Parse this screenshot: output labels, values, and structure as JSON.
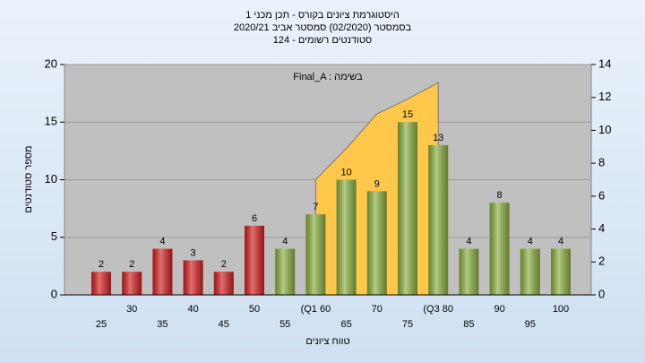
{
  "chart_data": {
    "type": "bar",
    "title": "היסטוגרמת ציונים בקורס - תכן מכני 1",
    "subtitle": "בסמסטר  (02/2020)  סמסטר אביב 2020/21",
    "subtitle2": "סטודנטים רשומים - 124",
    "legend": "Final_A : בשימה",
    "x_label": "טווח ציונים",
    "y_label": "מספר סטודנטים",
    "categories": [
      "25",
      "30",
      "35",
      "40",
      "45",
      "50",
      "55",
      "(Q1 60",
      "65",
      "70",
      "75",
      "(Q3 80",
      "85",
      "90",
      "95",
      "100"
    ],
    "values": [
      2,
      2,
      4,
      3,
      2,
      6,
      4,
      7,
      10,
      9,
      15,
      13,
      4,
      8,
      4,
      4
    ],
    "colors": [
      "#d42020",
      "#d42020",
      "#d42020",
      "#d42020",
      "#d42020",
      "#d42020",
      "#8cb040",
      "#8cb040",
      "#8cb040",
      "#8cb040",
      "#8cb040",
      "#8cb040",
      "#8cb040",
      "#8cb040",
      "#8cb040",
      "#8cb040"
    ],
    "area": {
      "color": "#ffc84a",
      "axis": "y2",
      "x": [
        60,
        65,
        70,
        75,
        80
      ],
      "values": [
        7,
        8.9,
        11,
        11.9,
        12.9
      ]
    },
    "ylim": [
      0,
      20
    ],
    "yticks": [
      0,
      5,
      10,
      15,
      20
    ],
    "y2lim": [
      0,
      14
    ],
    "y2ticks": [
      0,
      2,
      4,
      6,
      8,
      10,
      12,
      14
    ],
    "grid": true
  }
}
